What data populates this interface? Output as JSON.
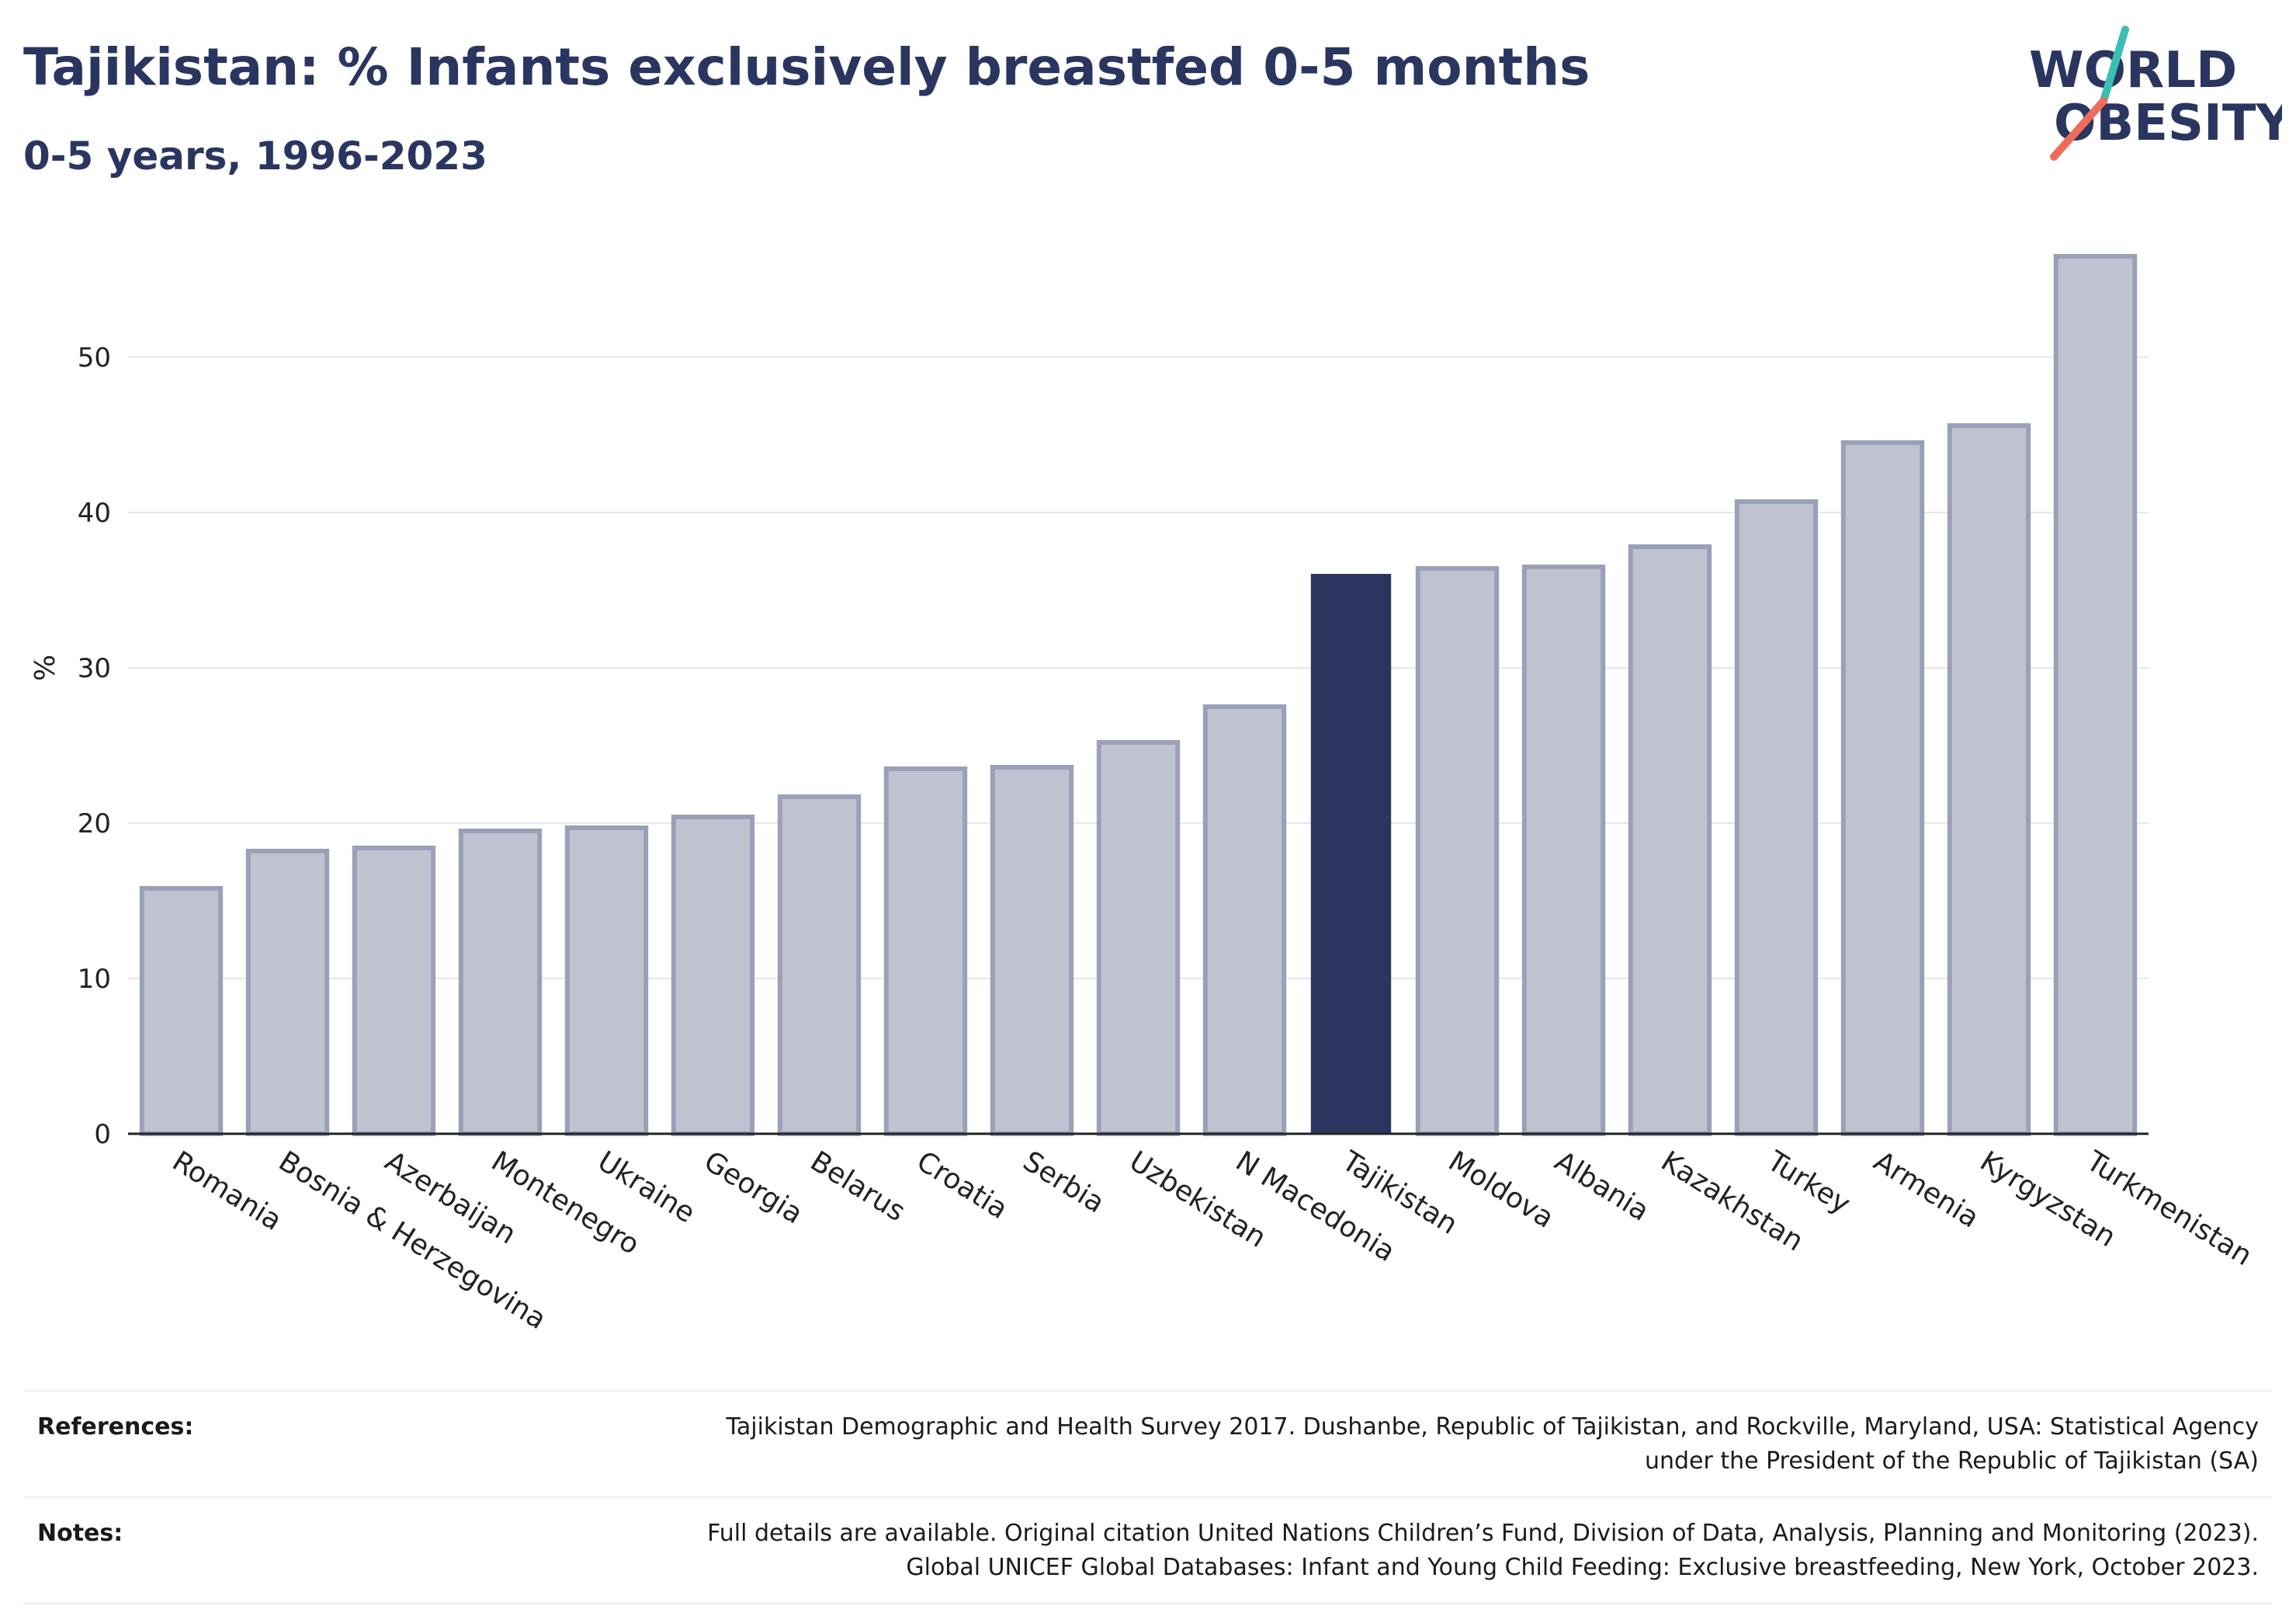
{
  "header": {
    "title": "Tajikistan: % Infants exclusively breastfed 0-5 months",
    "subtitle": "0-5 years, 1996-2023"
  },
  "logo": {
    "line1": "WORLD",
    "line2": "OBESITY"
  },
  "colors": {
    "bar": "#bfc2cf",
    "bar_border": "#9aa0b8",
    "highlight": "#2a3660",
    "grid": "#e8e8ec",
    "axis": "#222222"
  },
  "chart_data": {
    "type": "bar",
    "ylabel": "%",
    "ylim": [
      0,
      58
    ],
    "yticks": [
      0,
      10,
      20,
      30,
      40,
      50
    ],
    "highlight": "Tajikistan",
    "categories": [
      "Romania",
      "Bosnia & Herzegovina",
      "Azerbaijan",
      "Montenegro",
      "Ukraine",
      "Georgia",
      "Belarus",
      "Croatia",
      "Serbia",
      "Uzbekistan",
      "N Macedonia",
      "Tajikistan",
      "Moldova",
      "Albania",
      "Kazakhstan",
      "Turkey",
      "Armenia",
      "Kyrgyzstan",
      "Turkmenistan"
    ],
    "values": [
      15.8,
      18.2,
      18.4,
      19.5,
      19.7,
      20.4,
      21.7,
      23.5,
      23.6,
      25.2,
      27.5,
      36.0,
      36.4,
      36.5,
      37.8,
      40.7,
      44.5,
      45.6,
      56.5
    ]
  },
  "footer": {
    "rows": [
      {
        "label": "References:",
        "text_line1": "Tajikistan Demographic and Health Survey 2017. Dushanbe, Republic of Tajikistan, and Rockville, Maryland, USA: Statistical Agency",
        "text_line2": "under the President of the Republic of Tajikistan (SA)"
      },
      {
        "label": "Notes:",
        "text_line1": "Full details are available. Original citation United Nations Children’s Fund, Division of Data, Analysis, Planning and Monitoring (2023).",
        "text_line2": "Global UNICEF Global Databases: Infant and Young Child Feeding: Exclusive breastfeeding, New York, October 2023."
      }
    ]
  }
}
